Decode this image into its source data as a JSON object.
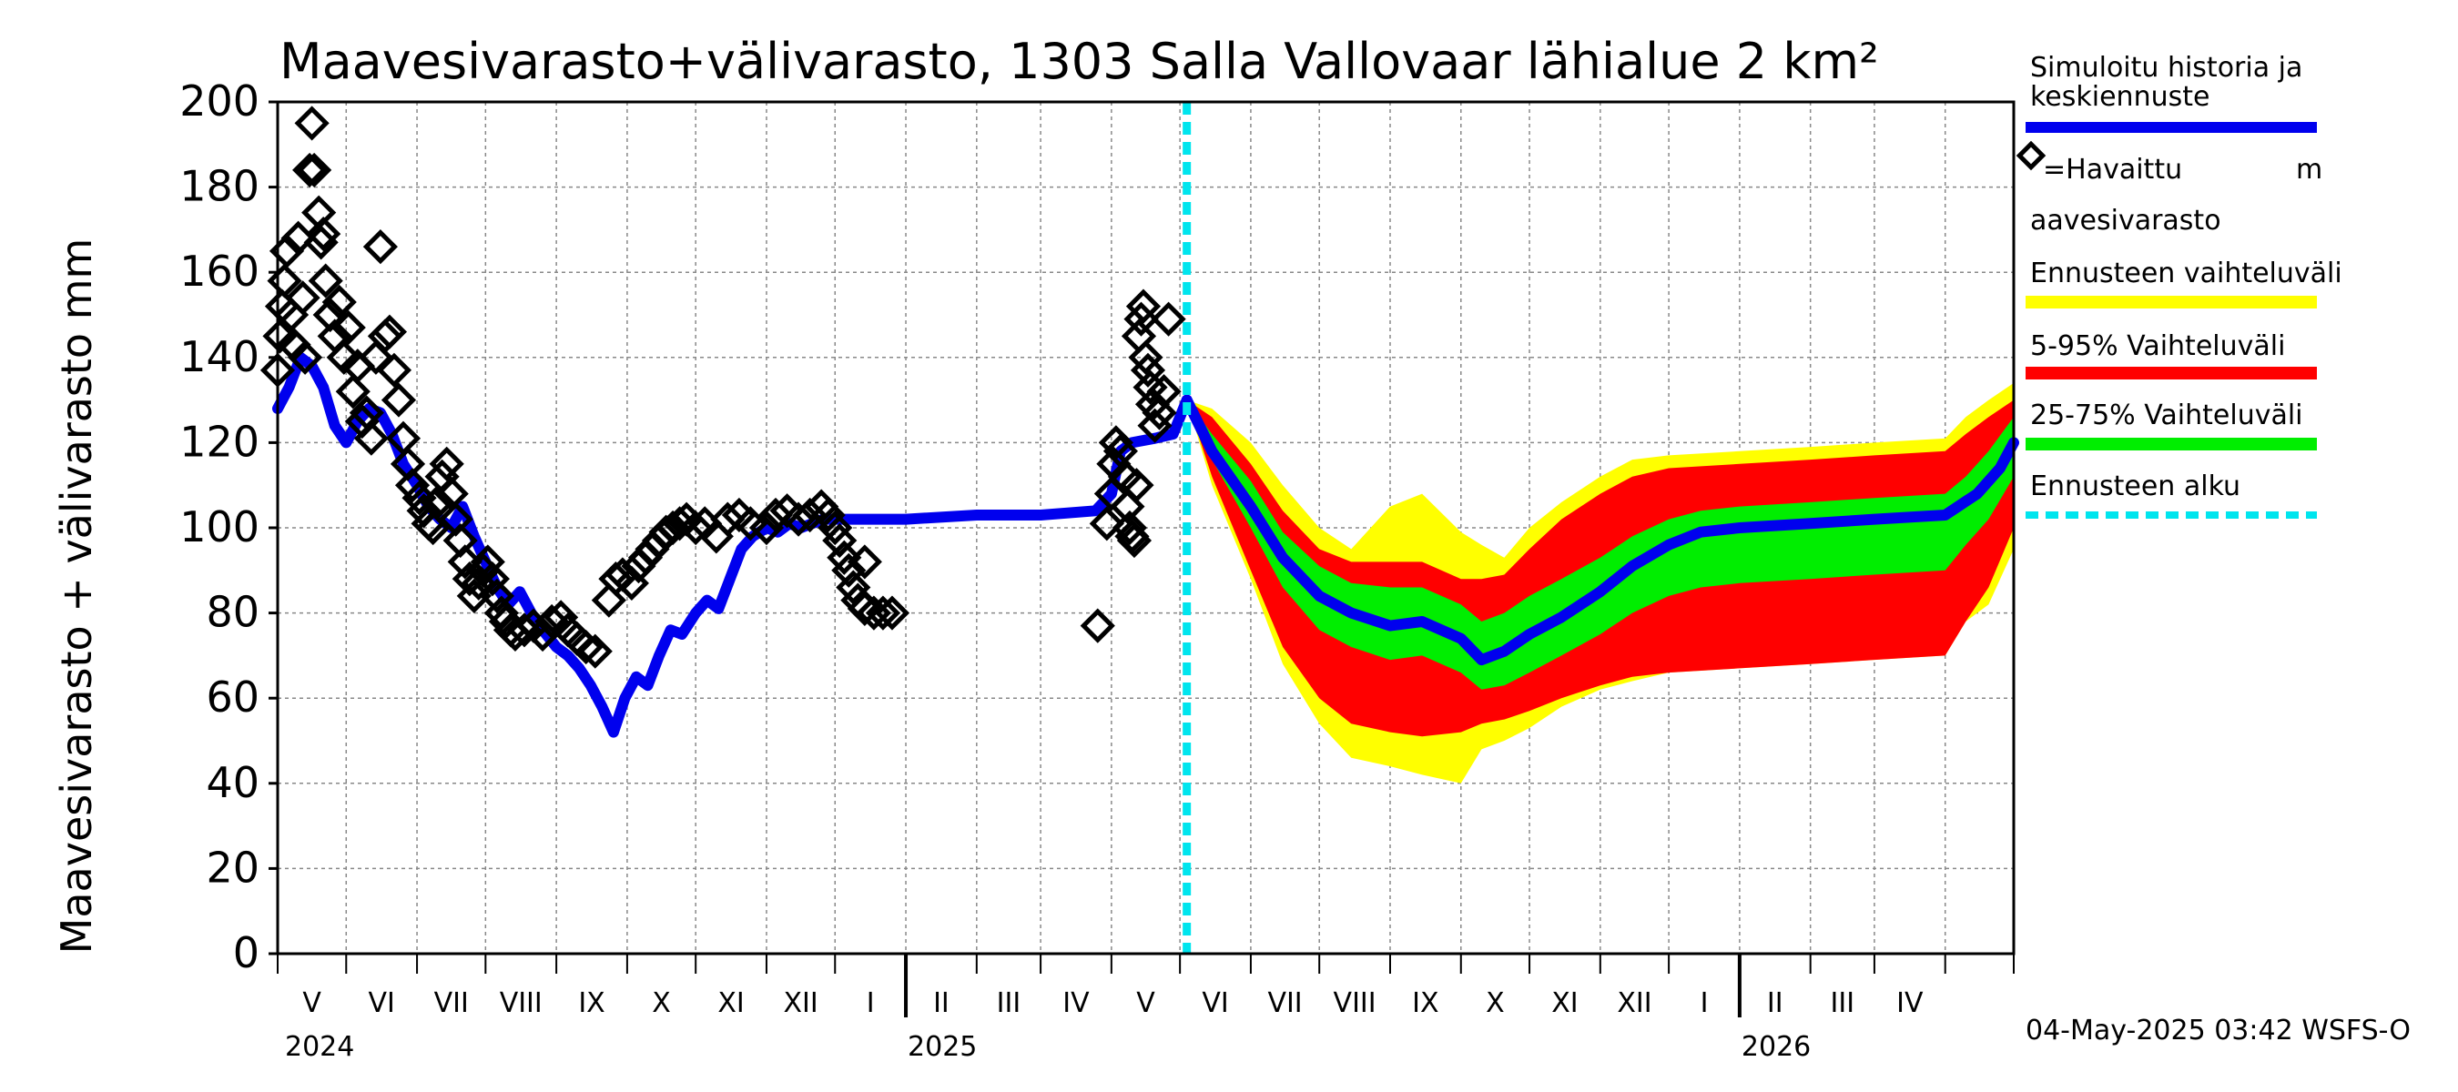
{
  "chart_data": {
    "type": "line",
    "title": "Maavesivarasto+välivarasto,  1303 Salla Vallovaar lähialue 2 km²",
    "ylabel": "Maavesivarasto + välivarasto mm",
    "ylim": [
      0,
      200
    ],
    "yticks": [
      "0",
      "20",
      "40",
      "60",
      "80",
      "100",
      "120",
      "140",
      "160",
      "180",
      "200"
    ],
    "months": [
      "V",
      "VI",
      "VII",
      "VIII",
      "IX",
      "X",
      "XI",
      "XII",
      "I",
      "II",
      "III",
      "IV",
      "V",
      "VI",
      "VII",
      "VIII",
      "IX",
      "X",
      "XI",
      "XII",
      "I",
      "II",
      "III",
      "IV"
    ],
    "years": [
      "2024",
      "2025",
      "2026"
    ],
    "x_range": [
      "2024-04-01",
      "2026-05-01"
    ],
    "forecast_start": "2025-05-04",
    "legend": {
      "simulated": "Simuloitu historia ja keskiennuste",
      "observed_a": "=Havaittu",
      "observed_m": "m",
      "observed_b": "aavesivarasto",
      "range": "Ennusteen vaihteluväli",
      "p5_95": "5-95% Vaihteluväli",
      "p25_75": "25-75% Vaihteluväli",
      "start": "Ennusteen alku"
    },
    "colors": {
      "simulated": "#0000ee",
      "observed": "#000000",
      "range": "#ffff00",
      "p5_95": "#ff0000",
      "p25_75": "#00ee00",
      "start": "#00e5ee"
    },
    "simulated_history": [
      [
        "2024-04-01",
        128
      ],
      [
        "2024-04-06",
        133
      ],
      [
        "2024-04-11",
        140
      ],
      [
        "2024-04-16",
        138
      ],
      [
        "2024-04-21",
        133
      ],
      [
        "2024-04-26",
        124
      ],
      [
        "2024-05-01",
        120
      ],
      [
        "2024-05-06",
        125
      ],
      [
        "2024-05-11",
        128
      ],
      [
        "2024-05-16",
        127
      ],
      [
        "2024-05-21",
        122
      ],
      [
        "2024-05-26",
        115
      ],
      [
        "2024-06-01",
        110
      ],
      [
        "2024-06-06",
        105
      ],
      [
        "2024-06-11",
        102
      ],
      [
        "2024-06-16",
        100
      ],
      [
        "2024-06-21",
        105
      ],
      [
        "2024-06-26",
        98
      ],
      [
        "2024-07-01",
        92
      ],
      [
        "2024-07-06",
        86
      ],
      [
        "2024-07-11",
        82
      ],
      [
        "2024-07-16",
        85
      ],
      [
        "2024-07-21",
        80
      ],
      [
        "2024-07-26",
        76
      ],
      [
        "2024-08-01",
        72
      ],
      [
        "2024-08-06",
        70
      ],
      [
        "2024-08-11",
        67
      ],
      [
        "2024-08-16",
        63
      ],
      [
        "2024-08-21",
        58
      ],
      [
        "2024-08-26",
        52
      ],
      [
        "2024-08-31",
        60
      ],
      [
        "2024-09-05",
        65
      ],
      [
        "2024-09-10",
        63
      ],
      [
        "2024-09-15",
        70
      ],
      [
        "2024-09-20",
        76
      ],
      [
        "2024-09-25",
        75
      ],
      [
        "2024-10-01",
        80
      ],
      [
        "2024-10-06",
        83
      ],
      [
        "2024-10-11",
        81
      ],
      [
        "2024-10-16",
        88
      ],
      [
        "2024-10-21",
        95
      ],
      [
        "2024-10-26",
        98
      ],
      [
        "2024-11-01",
        100
      ],
      [
        "2024-11-06",
        99
      ],
      [
        "2024-11-11",
        101
      ],
      [
        "2024-11-16",
        100
      ],
      [
        "2024-11-21",
        101
      ],
      [
        "2024-11-26",
        102
      ],
      [
        "2024-12-01",
        102
      ],
      [
        "2025-01-01",
        102
      ],
      [
        "2025-02-01",
        103
      ],
      [
        "2025-03-01",
        103
      ],
      [
        "2025-03-25",
        104
      ],
      [
        "2025-04-01",
        108
      ],
      [
        "2025-04-05",
        118
      ],
      [
        "2025-04-10",
        120
      ],
      [
        "2025-04-20",
        121
      ],
      [
        "2025-04-28",
        122
      ],
      [
        "2025-05-04",
        130
      ]
    ],
    "forecast_median": [
      [
        "2025-05-04",
        130
      ],
      [
        "2025-05-15",
        118
      ],
      [
        "2025-06-01",
        105
      ],
      [
        "2025-06-15",
        93
      ],
      [
        "2025-07-01",
        84
      ],
      [
        "2025-07-15",
        80
      ],
      [
        "2025-08-01",
        77
      ],
      [
        "2025-08-15",
        78
      ],
      [
        "2025-09-01",
        74
      ],
      [
        "2025-09-10",
        69
      ],
      [
        "2025-09-20",
        71
      ],
      [
        "2025-10-01",
        75
      ],
      [
        "2025-10-15",
        79
      ],
      [
        "2025-11-01",
        85
      ],
      [
        "2025-11-15",
        91
      ],
      [
        "2025-12-01",
        96
      ],
      [
        "2025-12-15",
        99
      ],
      [
        "2026-01-01",
        100
      ],
      [
        "2026-02-01",
        101
      ],
      [
        "2026-03-01",
        102
      ],
      [
        "2026-04-01",
        103
      ],
      [
        "2026-04-15",
        108
      ],
      [
        "2026-04-25",
        114
      ],
      [
        "2026-05-01",
        120
      ]
    ],
    "band_min_max": [
      [
        "2025-05-04",
        130,
        130
      ],
      [
        "2025-05-15",
        110,
        128
      ],
      [
        "2025-06-01",
        88,
        120
      ],
      [
        "2025-06-15",
        68,
        110
      ],
      [
        "2025-07-01",
        54,
        100
      ],
      [
        "2025-07-15",
        46,
        95
      ],
      [
        "2025-08-01",
        44,
        105
      ],
      [
        "2025-08-15",
        42,
        108
      ],
      [
        "2025-09-01",
        40,
        99
      ],
      [
        "2025-09-10",
        48,
        96
      ],
      [
        "2025-09-20",
        50,
        93
      ],
      [
        "2025-10-01",
        53,
        100
      ],
      [
        "2025-10-15",
        58,
        106
      ],
      [
        "2025-11-01",
        62,
        112
      ],
      [
        "2025-11-15",
        64,
        116
      ],
      [
        "2025-12-01",
        66,
        117
      ],
      [
        "2026-01-01",
        67,
        118
      ],
      [
        "2026-02-01",
        68,
        119
      ],
      [
        "2026-03-01",
        69,
        120
      ],
      [
        "2026-04-01",
        70,
        121
      ],
      [
        "2026-04-10",
        78,
        126
      ],
      [
        "2026-04-20",
        82,
        130
      ],
      [
        "2026-05-01",
        95,
        134
      ]
    ],
    "band_5_95": [
      [
        "2025-05-04",
        130,
        130
      ],
      [
        "2025-05-15",
        112,
        126
      ],
      [
        "2025-06-01",
        90,
        115
      ],
      [
        "2025-06-15",
        72,
        104
      ],
      [
        "2025-07-01",
        60,
        95
      ],
      [
        "2025-07-15",
        54,
        92
      ],
      [
        "2025-08-01",
        52,
        92
      ],
      [
        "2025-08-15",
        51,
        92
      ],
      [
        "2025-09-01",
        52,
        88
      ],
      [
        "2025-09-10",
        54,
        88
      ],
      [
        "2025-09-20",
        55,
        89
      ],
      [
        "2025-10-01",
        57,
        95
      ],
      [
        "2025-10-15",
        60,
        102
      ],
      [
        "2025-11-01",
        63,
        108
      ],
      [
        "2025-11-15",
        65,
        112
      ],
      [
        "2025-12-01",
        66,
        114
      ],
      [
        "2026-01-01",
        67,
        115
      ],
      [
        "2026-02-01",
        68,
        116
      ],
      [
        "2026-03-01",
        69,
        117
      ],
      [
        "2026-04-01",
        70,
        118
      ],
      [
        "2026-04-10",
        78,
        122
      ],
      [
        "2026-04-20",
        86,
        126
      ],
      [
        "2026-05-01",
        100,
        130
      ]
    ],
    "band_25_75": [
      [
        "2025-05-04",
        130,
        130
      ],
      [
        "2025-05-15",
        116,
        122
      ],
      [
        "2025-06-01",
        100,
        111
      ],
      [
        "2025-06-15",
        86,
        99
      ],
      [
        "2025-07-01",
        76,
        91
      ],
      [
        "2025-07-15",
        72,
        87
      ],
      [
        "2025-08-01",
        69,
        86
      ],
      [
        "2025-08-15",
        70,
        86
      ],
      [
        "2025-09-01",
        66,
        82
      ],
      [
        "2025-09-10",
        62,
        78
      ],
      [
        "2025-09-20",
        63,
        80
      ],
      [
        "2025-10-01",
        66,
        84
      ],
      [
        "2025-10-15",
        70,
        88
      ],
      [
        "2025-11-01",
        75,
        93
      ],
      [
        "2025-11-15",
        80,
        98
      ],
      [
        "2025-12-01",
        84,
        102
      ],
      [
        "2025-12-15",
        86,
        104
      ],
      [
        "2026-01-01",
        87,
        105
      ],
      [
        "2026-02-01",
        88,
        106
      ],
      [
        "2026-03-01",
        89,
        107
      ],
      [
        "2026-04-01",
        90,
        108
      ],
      [
        "2026-04-10",
        96,
        112
      ],
      [
        "2026-04-20",
        102,
        118
      ],
      [
        "2026-05-01",
        112,
        126
      ]
    ],
    "observed": [
      [
        "2024-04-01",
        137
      ],
      [
        "2024-04-02",
        145
      ],
      [
        "2024-04-03",
        152
      ],
      [
        "2024-04-04",
        158
      ],
      [
        "2024-04-05",
        165
      ],
      [
        "2024-04-07",
        150
      ],
      [
        "2024-04-08",
        143
      ],
      [
        "2024-04-10",
        168
      ],
      [
        "2024-04-12",
        154
      ],
      [
        "2024-04-13",
        140
      ],
      [
        "2024-04-15",
        184
      ],
      [
        "2024-04-16",
        195
      ],
      [
        "2024-04-17",
        184
      ],
      [
        "2024-04-19",
        174
      ],
      [
        "2024-04-20",
        167
      ],
      [
        "2024-04-21",
        169
      ],
      [
        "2024-04-22",
        158
      ],
      [
        "2024-04-24",
        150
      ],
      [
        "2024-04-26",
        145
      ],
      [
        "2024-04-28",
        153
      ],
      [
        "2024-04-30",
        140
      ],
      [
        "2024-05-02",
        147
      ],
      [
        "2024-05-04",
        132
      ],
      [
        "2024-05-06",
        138
      ],
      [
        "2024-05-08",
        125
      ],
      [
        "2024-05-10",
        127
      ],
      [
        "2024-05-12",
        121
      ],
      [
        "2024-05-14",
        140
      ],
      [
        "2024-05-16",
        166
      ],
      [
        "2024-05-18",
        145
      ],
      [
        "2024-05-20",
        146
      ],
      [
        "2024-05-22",
        137
      ],
      [
        "2024-05-24",
        130
      ],
      [
        "2024-05-26",
        121
      ],
      [
        "2024-05-28",
        115
      ],
      [
        "2024-05-30",
        110
      ],
      [
        "2024-06-02",
        107
      ],
      [
        "2024-06-04",
        104
      ],
      [
        "2024-06-06",
        101
      ],
      [
        "2024-06-08",
        100
      ],
      [
        "2024-06-10",
        106
      ],
      [
        "2024-06-12",
        112
      ],
      [
        "2024-06-14",
        115
      ],
      [
        "2024-06-16",
        108
      ],
      [
        "2024-06-18",
        102
      ],
      [
        "2024-06-20",
        97
      ],
      [
        "2024-06-22",
        92
      ],
      [
        "2024-06-24",
        88
      ],
      [
        "2024-06-26",
        84
      ],
      [
        "2024-06-28",
        87
      ],
      [
        "2024-06-30",
        90
      ],
      [
        "2024-07-02",
        92
      ],
      [
        "2024-07-04",
        88
      ],
      [
        "2024-07-06",
        84
      ],
      [
        "2024-07-08",
        80
      ],
      [
        "2024-07-10",
        78
      ],
      [
        "2024-07-12",
        76
      ],
      [
        "2024-07-14",
        75
      ],
      [
        "2024-07-18",
        76
      ],
      [
        "2024-07-22",
        77
      ],
      [
        "2024-07-26",
        75
      ],
      [
        "2024-07-30",
        78
      ],
      [
        "2024-08-03",
        79
      ],
      [
        "2024-08-06",
        76
      ],
      [
        "2024-08-10",
        74
      ],
      [
        "2024-08-14",
        72
      ],
      [
        "2024-08-18",
        71
      ],
      [
        "2024-08-24",
        83
      ],
      [
        "2024-08-27",
        88
      ],
      [
        "2024-08-30",
        89
      ],
      [
        "2024-09-03",
        87
      ],
      [
        "2024-09-06",
        91
      ],
      [
        "2024-09-09",
        93
      ],
      [
        "2024-09-12",
        95
      ],
      [
        "2024-09-15",
        97
      ],
      [
        "2024-09-18",
        99
      ],
      [
        "2024-09-21",
        100
      ],
      [
        "2024-09-24",
        101
      ],
      [
        "2024-09-27",
        102
      ],
      [
        "2024-10-01",
        100
      ],
      [
        "2024-10-05",
        101
      ],
      [
        "2024-10-10",
        98
      ],
      [
        "2024-10-15",
        102
      ],
      [
        "2024-10-20",
        103
      ],
      [
        "2024-10-25",
        101
      ],
      [
        "2024-11-01",
        100
      ],
      [
        "2024-11-05",
        103
      ],
      [
        "2024-11-10",
        104
      ],
      [
        "2024-11-15",
        102
      ],
      [
        "2024-11-20",
        103
      ],
      [
        "2024-11-25",
        105
      ],
      [
        "2024-11-28",
        103
      ],
      [
        "2024-12-01",
        100
      ],
      [
        "2024-12-03",
        97
      ],
      [
        "2024-12-05",
        93
      ],
      [
        "2024-12-07",
        90
      ],
      [
        "2024-12-09",
        86
      ],
      [
        "2024-12-11",
        83
      ],
      [
        "2024-12-14",
        81
      ],
      [
        "2024-12-18",
        80
      ],
      [
        "2024-12-22",
        80
      ],
      [
        "2024-12-26",
        80
      ],
      [
        "2024-12-14",
        92
      ],
      [
        "2025-03-26",
        77
      ],
      [
        "2025-03-30",
        101
      ],
      [
        "2025-04-01",
        108
      ],
      [
        "2025-04-02",
        115
      ],
      [
        "2025-04-03",
        120
      ],
      [
        "2025-04-05",
        118
      ],
      [
        "2025-04-07",
        112
      ],
      [
        "2025-04-08",
        105
      ],
      [
        "2025-04-09",
        100
      ],
      [
        "2025-04-10",
        98
      ],
      [
        "2025-04-11",
        97
      ],
      [
        "2025-04-12",
        110
      ],
      [
        "2025-04-13",
        145
      ],
      [
        "2025-04-14",
        149
      ],
      [
        "2025-04-15",
        152
      ],
      [
        "2025-04-16",
        140
      ],
      [
        "2025-04-17",
        137
      ],
      [
        "2025-04-18",
        133
      ],
      [
        "2025-04-19",
        129
      ],
      [
        "2025-04-20",
        124
      ],
      [
        "2025-04-22",
        127
      ],
      [
        "2025-04-24",
        132
      ],
      [
        "2025-04-26",
        149
      ]
    ]
  },
  "footer": "04-May-2025 03:42 WSFS-O"
}
